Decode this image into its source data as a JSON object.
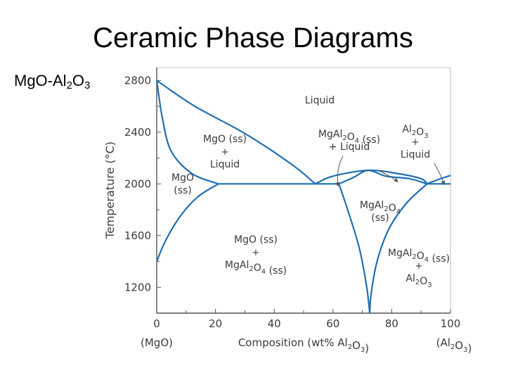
{
  "slide": {
    "title": "Ceramic Phase Diagrams",
    "system": {
      "prefix": "MgO-Al",
      "sub1": "2",
      "mid": "O",
      "sub2": "3"
    }
  },
  "chart_data": {
    "type": "phase-diagram",
    "xaxis": {
      "label": "Composition (wt% Al2O3)",
      "ticks": [
        0,
        20,
        40,
        60,
        80,
        100
      ],
      "range": [
        0,
        100
      ],
      "end_labels": [
        "(MgO)",
        "(Al2O3)"
      ]
    },
    "yaxis": {
      "label": "Temperature (°C)",
      "ticks": [
        1200,
        1600,
        2000,
        2400,
        2800
      ],
      "range": [
        1000,
        2900
      ]
    },
    "regions": [
      {
        "id": "liquid",
        "lines": [
          "Liquid"
        ]
      },
      {
        "id": "mgo-ss-liquid",
        "lines": [
          "MgO (ss)",
          "+",
          "Liquid"
        ]
      },
      {
        "id": "mgo-ss",
        "lines": [
          "MgO",
          "(ss)"
        ]
      },
      {
        "id": "spinel-liquid",
        "lines": [
          "MgAl2O4 (ss)",
          "+ Liquid"
        ]
      },
      {
        "id": "al2o3-liquid",
        "lines": [
          "Al2O3",
          "+",
          "Liquid"
        ]
      },
      {
        "id": "spinel-ss",
        "lines": [
          "MgAl2O4",
          "(ss)"
        ]
      },
      {
        "id": "mgo-spinel",
        "lines": [
          "MgO (ss)",
          "+",
          "MgAl2O4 (ss)"
        ]
      },
      {
        "id": "spinel-al2o3",
        "lines": [
          "MgAl2O4 (ss)",
          "+",
          "Al2O3"
        ]
      }
    ],
    "boundaries": [
      {
        "id": "mgo-liquidus",
        "points": [
          [
            0,
            2800
          ],
          [
            13,
            2600
          ],
          [
            30,
            2390
          ],
          [
            46,
            2150
          ],
          [
            54,
            2000
          ]
        ]
      },
      {
        "id": "mgo-solidus",
        "points": [
          [
            0,
            2800
          ],
          [
            2,
            2500
          ],
          [
            5,
            2250
          ],
          [
            12,
            2080
          ],
          [
            21,
            2000
          ]
        ]
      },
      {
        "id": "mgo-solvus",
        "points": [
          [
            21,
            2000
          ],
          [
            14,
            1900
          ],
          [
            8,
            1750
          ],
          [
            3,
            1560
          ],
          [
            0,
            1400
          ]
        ]
      },
      {
        "id": "eutectic-left",
        "points": [
          [
            21,
            2000
          ],
          [
            54,
            2000
          ],
          [
            62,
            2000
          ]
        ]
      },
      {
        "id": "spinel-liquidus",
        "points": [
          [
            54,
            2000
          ],
          [
            60,
            2060
          ],
          [
            72,
            2105
          ],
          [
            82,
            2080
          ],
          [
            90,
            2040
          ],
          [
            92,
            2000
          ]
        ]
      },
      {
        "id": "spinel-solidus",
        "points": [
          [
            62,
            2000
          ],
          [
            67,
            2050
          ],
          [
            72,
            2105
          ],
          [
            78,
            2060
          ],
          [
            86,
            2040
          ],
          [
            92,
            2000
          ]
        ]
      },
      {
        "id": "spinel-solvus-left",
        "points": [
          [
            62,
            2000
          ],
          [
            65,
            1800
          ],
          [
            69,
            1500
          ],
          [
            71.5,
            1200
          ],
          [
            72.5,
            1000
          ]
        ]
      },
      {
        "id": "spinel-solvus-right",
        "points": [
          [
            92,
            2000
          ],
          [
            85,
            1850
          ],
          [
            79,
            1650
          ],
          [
            75,
            1400
          ],
          [
            73,
            1150
          ],
          [
            72.5,
            1000
          ]
        ]
      },
      {
        "id": "eutectic-right",
        "points": [
          [
            92,
            2000
          ],
          [
            100,
            2000
          ]
        ]
      },
      {
        "id": "al2o3-liquidus",
        "points": [
          [
            92,
            2000
          ],
          [
            96,
            2035
          ],
          [
            100,
            2065
          ]
        ]
      }
    ]
  },
  "colors": {
    "curve": "#1f6fb2",
    "axis": "#555555",
    "label": "#3a3a3a"
  }
}
